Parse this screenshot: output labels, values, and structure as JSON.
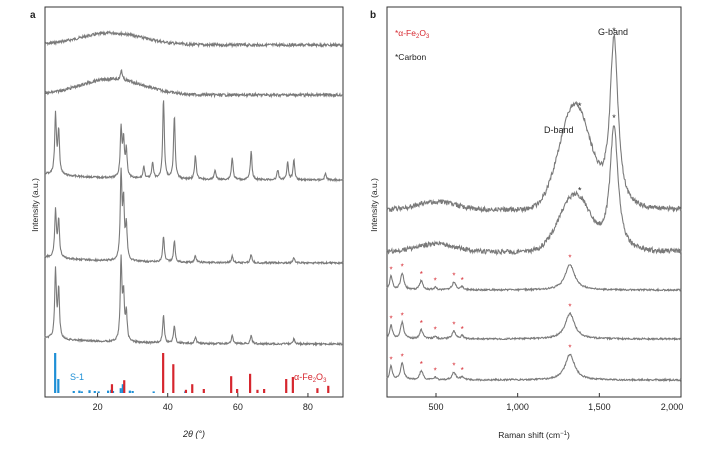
{
  "figure": {
    "panel_a_label": "a",
    "panel_b_label": "b"
  },
  "colors": {
    "trace": "#7a7a7a",
    "axis": "#333333",
    "s1": "#1e8fd6",
    "fe2o3": "#d6262e",
    "text": "#222222"
  },
  "chart_data": [
    {
      "type": "line",
      "panel": "a",
      "xlabel": "2θ (°)",
      "ylabel": "Intensity (a.u.)",
      "xlim": [
        5,
        90
      ],
      "x_ticks": [
        20,
        40,
        60,
        80
      ],
      "grid": false,
      "series": [
        {
          "trace": 1,
          "shape": "broad amorphous hump",
          "hump_center": 24,
          "peaks": []
        },
        {
          "trace": 2,
          "shape": "broad hump with weak peak",
          "hump_center": 24,
          "peaks": [
            {
              "x": 26.8,
              "rel": 0.25
            }
          ]
        },
        {
          "trace": 3,
          "peaks": [
            {
              "x": 8.0,
              "rel": 0.75
            },
            {
              "x": 8.9,
              "rel": 0.55
            },
            {
              "x": 26.7,
              "rel": 0.6
            },
            {
              "x": 27.4,
              "rel": 0.45
            },
            {
              "x": 28.2,
              "rel": 0.35
            },
            {
              "x": 33.2,
              "rel": 0.15
            },
            {
              "x": 35.7,
              "rel": 0.2
            },
            {
              "x": 38.8,
              "rel": 1.0
            },
            {
              "x": 41.9,
              "rel": 0.78
            },
            {
              "x": 47.9,
              "rel": 0.3
            },
            {
              "x": 53.5,
              "rel": 0.12
            },
            {
              "x": 58.4,
              "rel": 0.28
            },
            {
              "x": 63.8,
              "rel": 0.35
            },
            {
              "x": 71.4,
              "rel": 0.12
            },
            {
              "x": 74.2,
              "rel": 0.22
            },
            {
              "x": 76.0,
              "rel": 0.25
            },
            {
              "x": 85.0,
              "rel": 0.08
            }
          ]
        },
        {
          "trace": 4,
          "peaks": [
            {
              "x": 8.0,
              "rel": 0.55
            },
            {
              "x": 8.9,
              "rel": 0.45
            },
            {
              "x": 26.7,
              "rel": 1.0
            },
            {
              "x": 27.4,
              "rel": 0.65
            },
            {
              "x": 28.2,
              "rel": 0.4
            },
            {
              "x": 38.8,
              "rel": 0.3
            },
            {
              "x": 41.9,
              "rel": 0.25
            },
            {
              "x": 47.9,
              "rel": 0.08
            },
            {
              "x": 58.4,
              "rel": 0.08
            },
            {
              "x": 63.8,
              "rel": 0.1
            },
            {
              "x": 76.0,
              "rel": 0.06
            }
          ]
        },
        {
          "trace": 5,
          "peaks": [
            {
              "x": 8.0,
              "rel": 0.85
            },
            {
              "x": 8.9,
              "rel": 0.6
            },
            {
              "x": 26.7,
              "rel": 1.0
            },
            {
              "x": 27.4,
              "rel": 0.55
            },
            {
              "x": 28.2,
              "rel": 0.35
            },
            {
              "x": 38.8,
              "rel": 0.35
            },
            {
              "x": 41.9,
              "rel": 0.22
            },
            {
              "x": 47.9,
              "rel": 0.08
            },
            {
              "x": 58.4,
              "rel": 0.1
            },
            {
              "x": 63.8,
              "rel": 0.1
            },
            {
              "x": 76.0,
              "rel": 0.06
            }
          ]
        }
      ],
      "references": [
        {
          "name": "S-1",
          "color": "#1e8fd6",
          "sticks": [
            {
              "x": 7.9,
              "rel": 1.0
            },
            {
              "x": 8.8,
              "rel": 0.35
            },
            {
              "x": 13.2,
              "rel": 0.05
            },
            {
              "x": 14.8,
              "rel": 0.06
            },
            {
              "x": 15.5,
              "rel": 0.04
            },
            {
              "x": 17.7,
              "rel": 0.07
            },
            {
              "x": 19.2,
              "rel": 0.05
            },
            {
              "x": 20.3,
              "rel": 0.04
            },
            {
              "x": 23.0,
              "rel": 0.06
            },
            {
              "x": 23.9,
              "rel": 0.08
            },
            {
              "x": 24.4,
              "rel": 0.05
            },
            {
              "x": 26.6,
              "rel": 0.12
            },
            {
              "x": 27.2,
              "rel": 0.22
            },
            {
              "x": 29.2,
              "rel": 0.06
            },
            {
              "x": 30.0,
              "rel": 0.05
            },
            {
              "x": 36.0,
              "rel": 0.04
            },
            {
              "x": 45.0,
              "rel": 0.04
            }
          ]
        },
        {
          "name": "α-Fe₂O₃",
          "color": "#d6262e",
          "sticks": [
            {
              "x": 24.1,
              "rel": 0.22
            },
            {
              "x": 27.6,
              "rel": 0.32
            },
            {
              "x": 38.7,
              "rel": 1.0
            },
            {
              "x": 41.6,
              "rel": 0.72
            },
            {
              "x": 45.2,
              "rel": 0.08
            },
            {
              "x": 47.0,
              "rel": 0.22
            },
            {
              "x": 50.3,
              "rel": 0.1
            },
            {
              "x": 58.1,
              "rel": 0.42
            },
            {
              "x": 59.8,
              "rel": 0.1
            },
            {
              "x": 63.5,
              "rel": 0.48
            },
            {
              "x": 65.6,
              "rel": 0.08
            },
            {
              "x": 67.5,
              "rel": 0.1
            },
            {
              "x": 73.8,
              "rel": 0.35
            },
            {
              "x": 75.7,
              "rel": 0.4
            },
            {
              "x": 82.7,
              "rel": 0.12
            },
            {
              "x": 85.8,
              "rel": 0.18
            }
          ]
        }
      ],
      "labels": {
        "s1": "S-1",
        "fe2o3_prefix": "α-Fe",
        "fe2o3_sub1": "2",
        "fe2o3_mid": "O",
        "fe2o3_sub2": "3"
      }
    },
    {
      "type": "line",
      "panel": "b",
      "xlabel_main": "Raman shift (cm",
      "xlabel_sup": "−1",
      "xlabel_close": ")",
      "ylabel": "Intensity (a.u.)",
      "xlim": [
        200,
        2000
      ],
      "x_ticks": [
        500,
        1000,
        1500,
        2000
      ],
      "x_tick_labels": [
        "500",
        "1,000",
        "1,500",
        "2,000"
      ],
      "grid": false,
      "legend": {
        "fe2o3_text": "*α-Fe",
        "fe2o3_sub1": "2",
        "fe2o3_mid": "O",
        "fe2o3_sub2": "3",
        "carbon_text": "*Carbon"
      },
      "annotations": {
        "d_band": "D-band",
        "g_band": "G-band"
      },
      "series": [
        {
          "trace": 1,
          "type": "carbon",
          "d_band": 1350,
          "g_band": 1590,
          "d_rel": 0.38,
          "g_rel": 1.0
        },
        {
          "trace": 2,
          "type": "carbon",
          "d_band": 1350,
          "g_band": 1590,
          "d_rel": 0.28,
          "g_rel": 0.72
        },
        {
          "trace": 3,
          "type": "hematite",
          "peaks": [
            225,
            293,
            410,
            495,
            610,
            660,
            1320
          ]
        },
        {
          "trace": 4,
          "type": "hematite",
          "peaks": [
            225,
            293,
            410,
            495,
            610,
            660,
            1320
          ]
        },
        {
          "trace": 5,
          "type": "hematite",
          "peaks": [
            225,
            293,
            410,
            495,
            610,
            660,
            1320
          ]
        }
      ]
    }
  ]
}
